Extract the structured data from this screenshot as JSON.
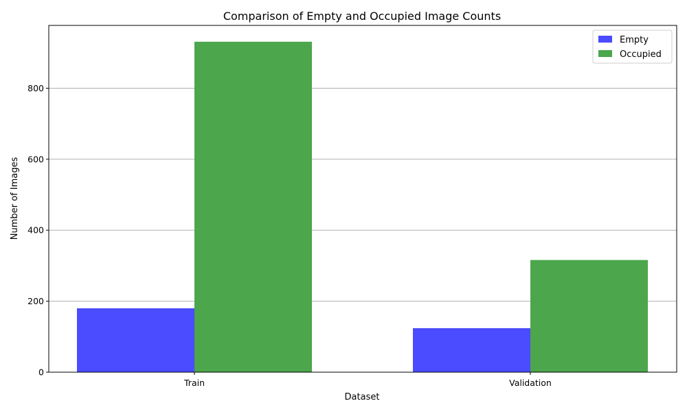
{
  "chart_data": {
    "type": "bar",
    "title": "Comparison of Empty and Occupied Image Counts",
    "xlabel": "Dataset",
    "ylabel": "Number of Images",
    "categories": [
      "Train",
      "Validation"
    ],
    "series": [
      {
        "name": "Empty",
        "values": [
          180,
          124
        ],
        "color": "#4b4bff"
      },
      {
        "name": "Occupied",
        "values": [
          931,
          316
        ],
        "color": "#4ca64c"
      }
    ],
    "ylim": [
      0,
      977
    ],
    "yticks": [
      0,
      200,
      400,
      600,
      800
    ],
    "grid": "y-only",
    "legend": "top-right"
  }
}
